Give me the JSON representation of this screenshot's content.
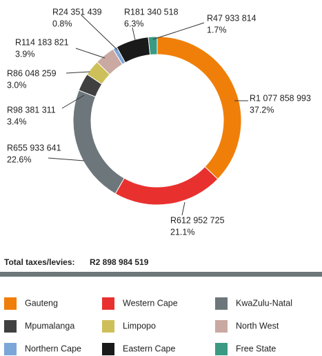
{
  "chart_data": {
    "type": "donut",
    "categories": [
      "Gauteng",
      "Western Cape",
      "KwaZulu-Natal",
      "Mpumalanga",
      "Limpopo",
      "North West",
      "Northern Cape",
      "Eastern Cape",
      "Free State"
    ],
    "values": [
      37.2,
      21.1,
      22.6,
      3.4,
      3.0,
      3.9,
      0.8,
      6.3,
      1.7
    ],
    "value_labels": [
      "37.2%",
      "21.1%",
      "22.6%",
      "3.4%",
      "3.0%",
      "3.9%",
      "0.8%",
      "6.3%",
      "1.7%"
    ],
    "amounts": [
      1077858993,
      612952725,
      655933641,
      98381311,
      86048259,
      114183821,
      24351439,
      181340518,
      47933814
    ],
    "amount_labels": [
      "R1 077 858 993",
      "R612 952 725",
      "R655 933 641",
      "R98 381 311",
      "R86 048 259",
      "R114 183 821",
      "R24 351 439",
      "R181 340 518",
      "R47 933 814"
    ],
    "colors": [
      "#f07f09",
      "#e8312f",
      "#6d777b",
      "#404040",
      "#cdc05a",
      "#c9a9a2",
      "#7aa6d8",
      "#1a1a1a",
      "#3a9a83"
    ],
    "total_label": "Total taxes/levies:",
    "total_text": "R2 898 984 519"
  }
}
